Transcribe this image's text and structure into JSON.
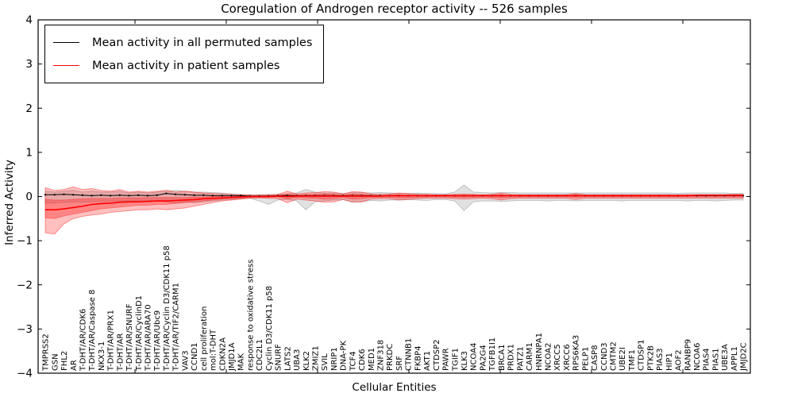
{
  "figure": {
    "title": "Coregulation of Androgen receptor activity -- 526 samples",
    "xlabel": "Cellular Entities",
    "ylabel": "Inferred Activity"
  },
  "legend": {
    "items": [
      {
        "label": "Mean activity in all permuted samples",
        "color": "#000000"
      },
      {
        "label": "Mean activity in patient samples",
        "color": "#ff0000"
      }
    ]
  },
  "chart_data": {
    "type": "line",
    "title": "Coregulation of Androgen receptor activity -- 526 samples",
    "xlabel": "Cellular Entities",
    "ylabel": "Inferred Activity",
    "ylim": [
      -4,
      4
    ],
    "yticks": [
      -4,
      -3,
      -2,
      -1,
      0,
      1,
      2,
      3,
      4
    ],
    "grid": false,
    "legend_position": "upper left",
    "categories": [
      "TMPRSS2",
      "GSN",
      "FHL2",
      "AR",
      "T-DHT/AR/CDK6",
      "T-DHT/AR/Caspase 8",
      "NKX3-1",
      "T-DHT/AR/PRX1",
      "T-DHT/AR",
      "T-DHT/AR/SNURF",
      "T-DHT/AR/CyclinD1",
      "T-DHT/AR/ARA70",
      "T-DHT/AR/Ubc9",
      "T-DHT/AR/Cyclin D3/CDK11 p58",
      "T-DHT/AR/TIF2/CARM1",
      "VAV3",
      "CCND1",
      "cell proliferation",
      "mol:T-DHT",
      "CDKN2A",
      "JMJD1A",
      "MAK",
      "response to oxidative stress",
      "CDC2L1",
      "Cyclin D3/CDK11 p58",
      "SNURF",
      "LATS2",
      "UBA3",
      "KLK2",
      "ZMIZ1",
      "SVIL",
      "NRIP1",
      "DNA-PK",
      "TCF4",
      "CDK6",
      "MED1",
      "ZNF318",
      "PRKDC",
      "SRF",
      "CTNNB1",
      "FKBP4",
      "AKT1",
      "CTDSP2",
      "PAWR",
      "TGIF1",
      "KLK3",
      "NCOA4",
      "PA2G4",
      "TGFB1I1",
      "BRCA1",
      "PRDX1",
      "PATZ1",
      "CARM1",
      "HNRNPA1",
      "NCOA2",
      "XRCC5",
      "XRCC6",
      "RPS6KA3",
      "PELP1",
      "CASP8",
      "CCND3",
      "CMTM2",
      "UBE2I",
      "TMF1",
      "CTDSP1",
      "PTK2B",
      "PIAS3",
      "HIP1",
      "AOF2",
      "RANBP9",
      "NCOA6",
      "PIAS4",
      "PIAS1",
      "UBE3A",
      "APPL1",
      "JMJD2C"
    ],
    "series": [
      {
        "name": "Mean activity in all permuted samples",
        "color": "#000000",
        "values": [
          0.04,
          0.04,
          0.05,
          0.04,
          0.03,
          0.02,
          0.03,
          0.02,
          0.03,
          0.02,
          0.03,
          0.02,
          0.03,
          0.07,
          0.05,
          0.04,
          0.03,
          0.03,
          0.02,
          0.02,
          0.02,
          0.02,
          0.01,
          0.01,
          0.01,
          0.02,
          0.02,
          0.02,
          0.02,
          0.02,
          0.02,
          0.02,
          0.02,
          0.02,
          0.02,
          0.02,
          0.02,
          0.02,
          0.02,
          0.02,
          0.02,
          0.02,
          0.02,
          0.02,
          0.02,
          0.02,
          0.02,
          0.02,
          0.02,
          0.02,
          0.02,
          0.02,
          0.02,
          0.02,
          0.02,
          0.02,
          0.02,
          0.02,
          0.02,
          0.02,
          0.02,
          0.02,
          0.02,
          0.02,
          0.02,
          0.02,
          0.02,
          0.02,
          0.02,
          0.02,
          0.02,
          0.02,
          0.02,
          0.02,
          0.02,
          0.02
        ]
      },
      {
        "name": "Mean activity in patient samples",
        "color": "#ff0000",
        "values": [
          -0.3,
          -0.3,
          -0.28,
          -0.25,
          -0.22,
          -0.18,
          -0.16,
          -0.15,
          -0.13,
          -0.12,
          -0.12,
          -0.11,
          -0.1,
          -0.1,
          -0.09,
          -0.08,
          -0.07,
          -0.05,
          -0.04,
          -0.03,
          -0.02,
          -0.01,
          0.0,
          0.0,
          0.0,
          0.01,
          0.0,
          0.01,
          0.01,
          0.01,
          0.01,
          0.01,
          0.01,
          0.01,
          0.01,
          0.01,
          0.01,
          0.02,
          0.02,
          0.02,
          0.02,
          0.02,
          0.02,
          0.02,
          0.02,
          0.02,
          0.02,
          0.02,
          0.02,
          0.02,
          0.02,
          0.02,
          0.02,
          0.02,
          0.02,
          0.02,
          0.02,
          0.02,
          0.02,
          0.02,
          0.02,
          0.02,
          0.02,
          0.02,
          0.02,
          0.02,
          0.02,
          0.02,
          0.02,
          0.02,
          0.03,
          0.03,
          0.03,
          0.03,
          0.03,
          0.03
        ]
      }
    ],
    "bands": [
      {
        "name": "permuted-samples-range",
        "color": "#aaaaaa",
        "upper": [
          0.12,
          0.1,
          0.12,
          0.14,
          0.1,
          0.12,
          0.1,
          0.1,
          0.12,
          0.08,
          0.1,
          0.08,
          0.1,
          0.12,
          0.14,
          0.12,
          0.1,
          0.1,
          0.09,
          0.08,
          0.06,
          0.05,
          0.04,
          0.04,
          0.05,
          0.05,
          0.06,
          0.08,
          0.16,
          0.1,
          0.08,
          0.08,
          0.07,
          0.09,
          0.09,
          0.08,
          0.09,
          0.08,
          0.07,
          0.07,
          0.08,
          0.07,
          0.07,
          0.06,
          0.1,
          0.26,
          0.1,
          0.09,
          0.08,
          0.09,
          0.09,
          0.08,
          0.08,
          0.08,
          0.08,
          0.08,
          0.08,
          0.08,
          0.08,
          0.08,
          0.08,
          0.08,
          0.08,
          0.08,
          0.08,
          0.08,
          0.08,
          0.08,
          0.07,
          0.08,
          0.08,
          0.08,
          0.08,
          0.08,
          0.07,
          0.07
        ],
        "lower": [
          -0.15,
          -0.15,
          -0.13,
          -0.12,
          -0.12,
          -0.12,
          -0.11,
          -0.1,
          -0.1,
          -0.1,
          -0.09,
          -0.09,
          -0.1,
          -0.12,
          -0.14,
          -0.12,
          -0.14,
          -0.12,
          -0.1,
          -0.08,
          -0.07,
          -0.05,
          -0.04,
          -0.1,
          -0.18,
          -0.08,
          -0.06,
          -0.1,
          -0.3,
          -0.12,
          -0.1,
          -0.08,
          -0.07,
          -0.13,
          -0.12,
          -0.09,
          -0.1,
          -0.08,
          -0.08,
          -0.07,
          -0.08,
          -0.09,
          -0.07,
          -0.07,
          -0.1,
          -0.32,
          -0.12,
          -0.1,
          -0.1,
          -0.11,
          -0.1,
          -0.09,
          -0.09,
          -0.09,
          -0.1,
          -0.09,
          -0.09,
          -0.1,
          -0.09,
          -0.09,
          -0.09,
          -0.09,
          -0.1,
          -0.09,
          -0.09,
          -0.09,
          -0.09,
          -0.09,
          -0.09,
          -0.1,
          -0.09,
          -0.09,
          -0.1,
          -0.09,
          -0.08,
          -0.08
        ]
      },
      {
        "name": "patient-samples-range-outer",
        "color": "#ff0000",
        "upper": [
          0.2,
          0.14,
          0.16,
          0.22,
          0.16,
          0.18,
          0.14,
          0.12,
          0.16,
          0.1,
          0.12,
          0.1,
          0.12,
          0.14,
          0.1,
          0.12,
          0.1,
          0.08,
          0.07,
          0.06,
          0.05,
          0.04,
          0.03,
          0.03,
          0.04,
          0.05,
          0.12,
          0.06,
          0.08,
          0.09,
          0.11,
          0.1,
          0.06,
          0.11,
          0.1,
          0.06,
          0.05,
          0.06,
          0.08,
          0.07,
          0.05,
          0.05,
          0.04,
          0.04,
          0.05,
          0.06,
          0.05,
          0.04,
          0.05,
          0.08,
          0.05,
          0.04,
          0.04,
          0.04,
          0.04,
          0.04,
          0.04,
          0.07,
          0.04,
          0.04,
          0.04,
          0.04,
          0.04,
          0.04,
          0.04,
          0.04,
          0.04,
          0.04,
          0.04,
          0.04,
          0.04,
          0.04,
          0.04,
          0.04,
          0.05,
          0.05
        ],
        "lower": [
          -0.82,
          -0.85,
          -0.62,
          -0.5,
          -0.45,
          -0.42,
          -0.4,
          -0.36,
          -0.34,
          -0.32,
          -0.3,
          -0.3,
          -0.28,
          -0.3,
          -0.28,
          -0.26,
          -0.22,
          -0.18,
          -0.14,
          -0.1,
          -0.08,
          -0.06,
          -0.04,
          -0.03,
          -0.04,
          -0.05,
          -0.14,
          -0.06,
          -0.08,
          -0.1,
          -0.13,
          -0.12,
          -0.07,
          -0.12,
          -0.12,
          -0.06,
          -0.05,
          -0.05,
          -0.08,
          -0.07,
          -0.05,
          -0.04,
          -0.04,
          -0.04,
          -0.05,
          -0.06,
          -0.05,
          -0.04,
          -0.05,
          -0.08,
          -0.05,
          -0.04,
          -0.04,
          -0.04,
          -0.04,
          -0.04,
          -0.04,
          -0.07,
          -0.04,
          -0.04,
          -0.04,
          -0.04,
          -0.04,
          -0.04,
          -0.04,
          -0.04,
          -0.04,
          -0.04,
          -0.04,
          -0.04,
          -0.04,
          -0.04,
          -0.04,
          -0.04,
          -0.04,
          -0.04
        ]
      },
      {
        "name": "patient-samples-range-inner",
        "color": "#ff0000",
        "upper": [
          -0.06,
          -0.08,
          -0.08,
          -0.06,
          -0.05,
          -0.04,
          -0.04,
          -0.04,
          -0.03,
          -0.03,
          -0.03,
          -0.02,
          -0.02,
          -0.02,
          -0.02,
          -0.02,
          -0.01,
          -0.01,
          0.0,
          0.0,
          0.0,
          0.01,
          0.01,
          0.01,
          0.02,
          0.02,
          0.06,
          0.03,
          0.04,
          0.05,
          0.06,
          0.05,
          0.03,
          0.06,
          0.05,
          0.03,
          0.02,
          0.03,
          0.04,
          0.03,
          0.03,
          0.02,
          0.02,
          0.02,
          0.02,
          0.03,
          0.02,
          0.02,
          0.03,
          0.04,
          0.02,
          0.02,
          0.02,
          0.02,
          0.02,
          0.02,
          0.02,
          0.04,
          0.02,
          0.02,
          0.02,
          0.02,
          0.02,
          0.02,
          0.02,
          0.02,
          0.02,
          0.02,
          0.02,
          0.02,
          0.02,
          0.02,
          0.02,
          0.02,
          0.03,
          0.03
        ],
        "lower": [
          -0.48,
          -0.5,
          -0.44,
          -0.4,
          -0.36,
          -0.32,
          -0.28,
          -0.26,
          -0.24,
          -0.22,
          -0.2,
          -0.2,
          -0.18,
          -0.18,
          -0.16,
          -0.14,
          -0.12,
          -0.1,
          -0.08,
          -0.06,
          -0.05,
          -0.04,
          -0.02,
          -0.02,
          -0.02,
          -0.01,
          -0.06,
          -0.02,
          -0.03,
          -0.04,
          -0.06,
          -0.05,
          -0.02,
          -0.06,
          -0.05,
          -0.02,
          -0.02,
          -0.02,
          -0.03,
          -0.03,
          -0.02,
          -0.01,
          -0.01,
          -0.01,
          -0.02,
          -0.02,
          -0.02,
          -0.01,
          -0.02,
          -0.03,
          -0.02,
          -0.01,
          -0.01,
          -0.01,
          -0.01,
          -0.01,
          -0.01,
          -0.02,
          -0.01,
          -0.01,
          -0.01,
          -0.01,
          -0.01,
          -0.01,
          -0.01,
          -0.01,
          -0.01,
          -0.01,
          -0.01,
          -0.01,
          -0.01,
          -0.01,
          -0.01,
          -0.01,
          -0.01,
          -0.01
        ]
      }
    ]
  }
}
